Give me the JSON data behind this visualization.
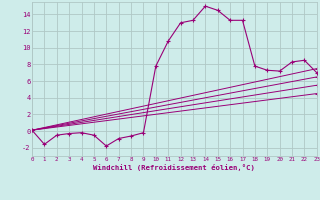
{
  "xlabel": "Windchill (Refroidissement éolien,°C)",
  "bg_color": "#ceecea",
  "grid_color": "#b0c8c6",
  "line_color": "#990077",
  "xlim": [
    0,
    23
  ],
  "ylim": [
    -3,
    15.5
  ],
  "xticks": [
    0,
    1,
    2,
    3,
    4,
    5,
    6,
    7,
    8,
    9,
    10,
    11,
    12,
    13,
    14,
    15,
    16,
    17,
    18,
    19,
    20,
    21,
    22,
    23
  ],
  "yticks": [
    -2,
    0,
    2,
    4,
    6,
    8,
    10,
    12,
    14
  ],
  "series": [
    [
      0,
      0.1
    ],
    [
      1,
      -1.6
    ],
    [
      2,
      -0.5
    ],
    [
      3,
      -0.3
    ],
    [
      4,
      -0.2
    ],
    [
      5,
      -0.5
    ],
    [
      6,
      -1.8
    ],
    [
      7,
      -0.9
    ],
    [
      8,
      -0.6
    ],
    [
      9,
      -0.2
    ],
    [
      10,
      7.8
    ],
    [
      11,
      10.8
    ],
    [
      12,
      13.0
    ],
    [
      13,
      13.3
    ],
    [
      14,
      15.0
    ],
    [
      15,
      14.5
    ],
    [
      16,
      13.3
    ],
    [
      17,
      13.3
    ],
    [
      18,
      7.8
    ],
    [
      19,
      7.3
    ],
    [
      20,
      7.2
    ],
    [
      21,
      8.3
    ],
    [
      22,
      8.5
    ],
    [
      23,
      7.0
    ]
  ],
  "straight_lines": [
    [
      [
        0,
        0.1
      ],
      [
        23,
        7.5
      ]
    ],
    [
      [
        0,
        0.1
      ],
      [
        23,
        6.5
      ]
    ],
    [
      [
        0,
        0.1
      ],
      [
        23,
        5.5
      ]
    ],
    [
      [
        0,
        0.1
      ],
      [
        23,
        4.5
      ]
    ]
  ]
}
